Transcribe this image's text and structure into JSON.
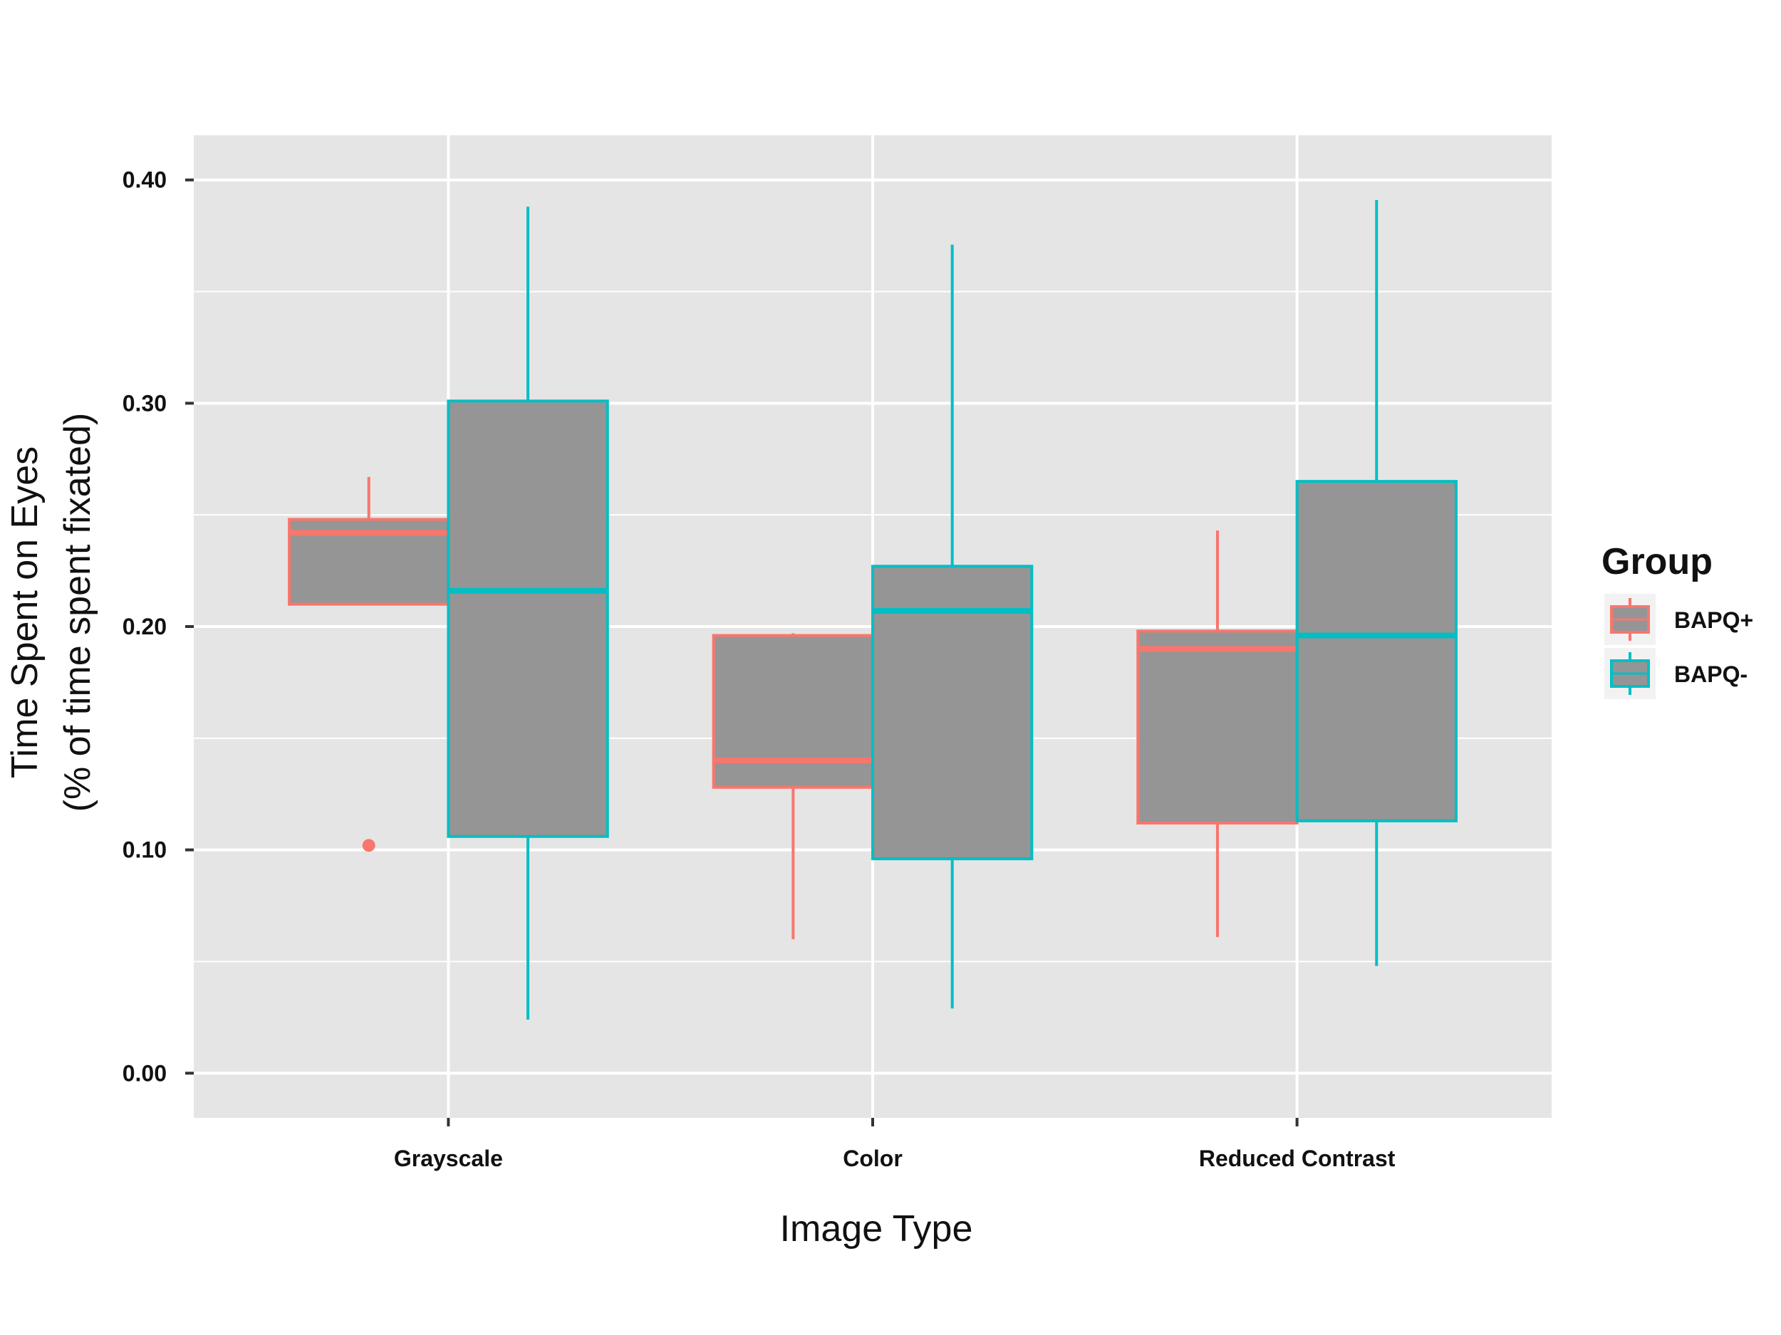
{
  "chart_data": {
    "type": "boxplot",
    "xlabel": "Image Type",
    "ylabel_line1": "Time Spent on Eyes",
    "ylabel_line2": "(% of time spent fixated)",
    "categories": [
      "Grayscale",
      "Color",
      "Reduced Contrast"
    ],
    "ylim": [
      -0.02,
      0.42
    ],
    "yticks": [
      0.0,
      0.1,
      0.2,
      0.3,
      0.4
    ],
    "ytick_labels": [
      "0.00",
      "0.10",
      "0.20",
      "0.30",
      "0.40"
    ],
    "grid": true,
    "legend": {
      "title": "Group",
      "position": "right"
    },
    "series": [
      {
        "name": "BAPQ+",
        "color": "#F8766D",
        "boxes": [
          {
            "category": "Grayscale",
            "whisker_low": 0.21,
            "q1": 0.21,
            "median": 0.242,
            "q3": 0.248,
            "whisker_high": 0.267,
            "outliers": [
              0.102
            ]
          },
          {
            "category": "Color",
            "whisker_low": 0.06,
            "q1": 0.128,
            "median": 0.14,
            "q3": 0.196,
            "whisker_high": 0.197,
            "outliers": []
          },
          {
            "category": "Reduced Contrast",
            "whisker_low": 0.061,
            "q1": 0.112,
            "median": 0.19,
            "q3": 0.198,
            "whisker_high": 0.243,
            "outliers": []
          }
        ]
      },
      {
        "name": "BAPQ-",
        "color": "#00BFC4",
        "boxes": [
          {
            "category": "Grayscale",
            "whisker_low": 0.024,
            "q1": 0.106,
            "median": 0.216,
            "q3": 0.301,
            "whisker_high": 0.388,
            "outliers": []
          },
          {
            "category": "Color",
            "whisker_low": 0.029,
            "q1": 0.096,
            "median": 0.207,
            "q3": 0.227,
            "whisker_high": 0.371,
            "outliers": []
          },
          {
            "category": "Reduced Contrast",
            "whisker_low": 0.048,
            "q1": 0.113,
            "median": 0.196,
            "q3": 0.265,
            "whisker_high": 0.391,
            "outliers": []
          }
        ]
      }
    ],
    "box_fill": "#959595",
    "panel_background": "#E5E5E5"
  }
}
